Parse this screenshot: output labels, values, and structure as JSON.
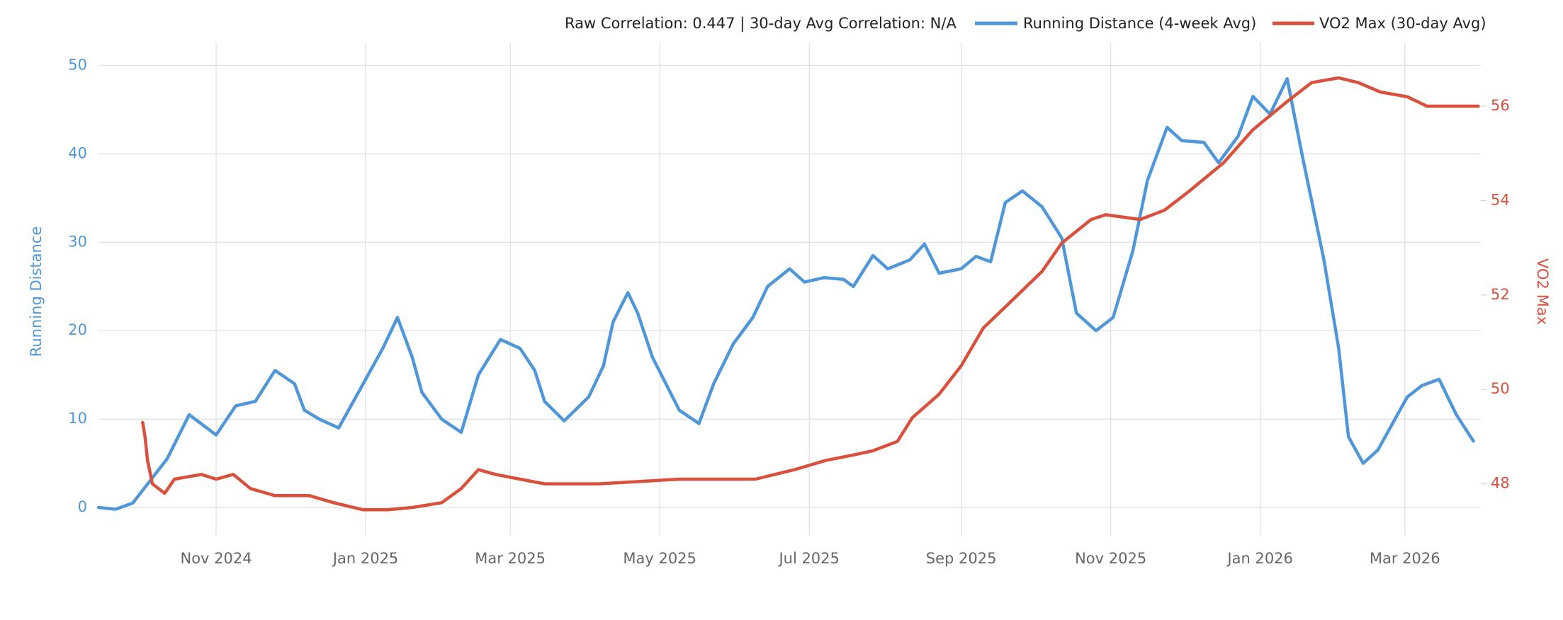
{
  "chart_data": {
    "type": "line",
    "annotation": "Raw Correlation: 0.447  |  30-day Avg Correlation: N/A",
    "y_label": "Running Distance",
    "y2_label": "VO2 Max",
    "xlim": [
      "2024-09-14",
      "2026-04-01"
    ],
    "xticks": [
      {
        "value": "2024-11",
        "label": "Nov 2024"
      },
      {
        "value": "2025-01",
        "label": "Jan 2025"
      },
      {
        "value": "2025-03",
        "label": "Mar 2025"
      },
      {
        "value": "2025-05",
        "label": "May 2025"
      },
      {
        "value": "2025-07",
        "label": "Jul 2025"
      },
      {
        "value": "2025-09",
        "label": "Sep 2025"
      },
      {
        "value": "2025-11",
        "label": "Nov 2025"
      },
      {
        "value": "2026-01",
        "label": "Jan 2026"
      },
      {
        "value": "2026-03",
        "label": "Mar 2026"
      }
    ],
    "ylim": [
      -3.2,
      52.6
    ],
    "yticks": [
      0,
      10,
      20,
      30,
      40,
      50
    ],
    "y2lim": [
      46.9,
      57.35
    ],
    "y2ticks": [
      48,
      50,
      52,
      54,
      56
    ],
    "grid": true,
    "series": [
      {
        "name": "Running Distance (4-week Avg)",
        "color": "#4f97d8",
        "x": [
          "2024-09-14",
          "2024-09-21",
          "2024-09-28",
          "2024-10-05",
          "2024-10-12",
          "2024-10-21",
          "2024-11-01",
          "2024-11-09",
          "2024-11-17",
          "2024-11-25",
          "2024-12-03",
          "2024-12-07",
          "2024-12-13",
          "2024-12-21",
          "2024-12-27",
          "2025-01-01",
          "2025-01-08",
          "2025-01-14",
          "2025-01-20",
          "2025-01-24",
          "2025-02-01",
          "2025-02-09",
          "2025-02-16",
          "2025-02-25",
          "2025-03-05",
          "2025-03-11",
          "2025-03-15",
          "2025-03-23",
          "2025-04-02",
          "2025-04-08",
          "2025-04-12",
          "2025-04-18",
          "2025-04-22",
          "2025-04-28",
          "2025-05-09",
          "2025-05-17",
          "2025-05-23",
          "2025-05-31",
          "2025-06-08",
          "2025-06-14",
          "2025-06-23",
          "2025-06-29",
          "2025-07-07",
          "2025-07-15",
          "2025-07-19",
          "2025-07-27",
          "2025-08-02",
          "2025-08-11",
          "2025-08-17",
          "2025-08-23",
          "2025-09-01",
          "2025-09-07",
          "2025-09-13",
          "2025-09-19",
          "2025-09-26",
          "2025-10-04",
          "2025-10-12",
          "2025-10-18",
          "2025-10-26",
          "2025-11-02",
          "2025-11-10",
          "2025-11-16",
          "2025-11-24",
          "2025-11-30",
          "2025-12-09",
          "2025-12-15",
          "2025-12-23",
          "2025-12-29",
          "2026-01-05",
          "2026-01-12",
          "2026-01-18",
          "2026-01-27",
          "2026-02-02",
          "2026-02-06",
          "2026-02-12",
          "2026-02-18",
          "2026-02-25",
          "2026-03-02",
          "2026-03-08",
          "2026-03-15",
          "2026-03-22",
          "2026-03-29"
        ],
        "values": [
          0,
          -0.2,
          0.5,
          3,
          5.5,
          10.5,
          8.2,
          11.5,
          12,
          15.5,
          14,
          11,
          10,
          9,
          12,
          14.5,
          18,
          21.5,
          17,
          13,
          10,
          8.5,
          15,
          19,
          18,
          15.5,
          12,
          9.8,
          12.5,
          16,
          21,
          24.3,
          22,
          17,
          11,
          9.5,
          14,
          18.5,
          21.5,
          25,
          27,
          25.5,
          26,
          25.8,
          25,
          28.5,
          27,
          28,
          29.8,
          26.5,
          27,
          28.4,
          27.8,
          34.5,
          35.8,
          34,
          30.5,
          22,
          20,
          21.5,
          29,
          37,
          43,
          41.5,
          41.3,
          39,
          42,
          46.5,
          44.5,
          48.5,
          40,
          28,
          18,
          8,
          5,
          6.5,
          10,
          12.5,
          13.8,
          14.5,
          10.5,
          7.5
        ]
      },
      {
        "name": "VO2 Max (30-day Avg)",
        "color": "#d9513d",
        "axis": "y2",
        "x": [
          "2024-10-02",
          "2024-10-03",
          "2024-10-04",
          "2024-10-06",
          "2024-10-11",
          "2024-10-15",
          "2024-10-26",
          "2024-11-01",
          "2024-11-08",
          "2024-11-15",
          "2024-11-25",
          "2024-12-09",
          "2024-12-19",
          "2024-12-31",
          "2025-01-10",
          "2025-01-20",
          "2025-02-01",
          "2025-02-09",
          "2025-02-16",
          "2025-02-23",
          "2025-03-05",
          "2025-03-15",
          "2025-04-06",
          "2025-04-23",
          "2025-05-09",
          "2025-05-25",
          "2025-06-09",
          "2025-06-25",
          "2025-07-08",
          "2025-07-18",
          "2025-07-27",
          "2025-08-06",
          "2025-08-12",
          "2025-08-23",
          "2025-09-01",
          "2025-09-10",
          "2025-09-20",
          "2025-10-04",
          "2025-10-12",
          "2025-10-24",
          "2025-10-30",
          "2025-11-13",
          "2025-11-23",
          "2025-12-03",
          "2025-12-17",
          "2025-12-29",
          "2026-01-12",
          "2026-01-22",
          "2026-02-02",
          "2026-02-10",
          "2026-02-19",
          "2026-03-02",
          "2026-03-10",
          "2026-03-18",
          "2026-03-31"
        ],
        "values": [
          49.3,
          49.0,
          48.5,
          48.0,
          47.8,
          48.1,
          48.2,
          48.1,
          48.2,
          47.9,
          47.75,
          47.75,
          47.6,
          47.45,
          47.45,
          47.5,
          47.6,
          47.9,
          48.3,
          48.2,
          48.1,
          48.0,
          48.0,
          48.05,
          48.1,
          48.1,
          48.1,
          48.3,
          48.5,
          48.6,
          48.7,
          48.9,
          49.4,
          49.9,
          50.5,
          51.3,
          51.8,
          52.5,
          53.1,
          53.6,
          53.7,
          53.6,
          53.8,
          54.2,
          54.8,
          55.5,
          56.1,
          56.5,
          56.6,
          56.5,
          56.3,
          56.2,
          56.0,
          56.0,
          56.0
        ]
      }
    ]
  }
}
